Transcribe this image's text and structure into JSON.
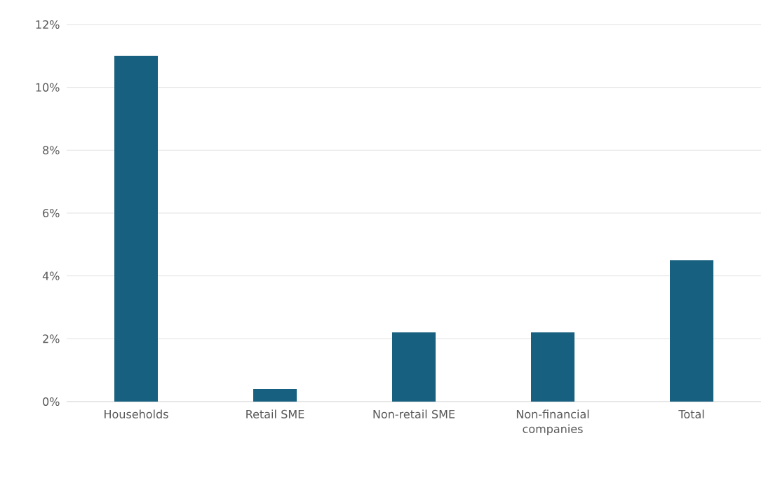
{
  "chart_data": {
    "type": "bar",
    "categories": [
      "Households",
      "Retail SME",
      "Non-retail SME",
      "Non-financial companies",
      "Total"
    ],
    "values": [
      11.0,
      0.4,
      2.2,
      2.2,
      4.5
    ],
    "color": "#17607f",
    "ylim": [
      0,
      12
    ],
    "yticks": [
      {
        "value": 0,
        "label": "0%"
      },
      {
        "value": 2,
        "label": "2%"
      },
      {
        "value": 4,
        "label": "4%"
      },
      {
        "value": 6,
        "label": "6%"
      },
      {
        "value": 8,
        "label": "8%"
      },
      {
        "value": 10,
        "label": "10%"
      },
      {
        "value": 12,
        "label": "12%"
      }
    ],
    "grid": "y"
  }
}
